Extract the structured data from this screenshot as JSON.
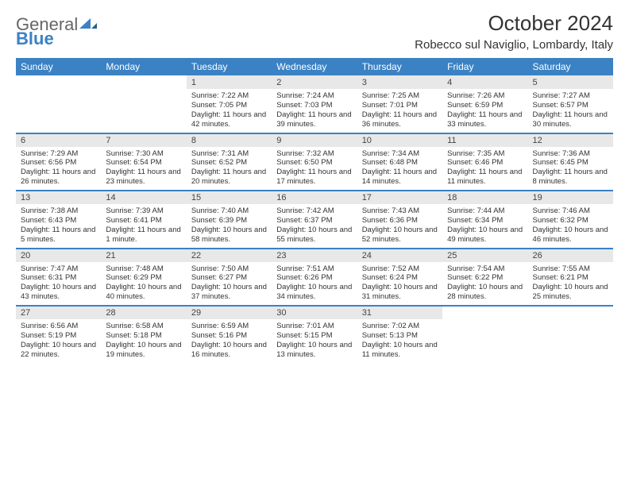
{
  "logo": {
    "part1": "General",
    "part2": "Blue"
  },
  "title": "October 2024",
  "location": "Robecco sul Naviglio, Lombardy, Italy",
  "colors": {
    "header_bg": "#3b82c4",
    "header_text": "#ffffff",
    "daynum_bg": "#e8e8e8",
    "border": "#3b82c4",
    "text": "#333333"
  },
  "dayNames": [
    "Sunday",
    "Monday",
    "Tuesday",
    "Wednesday",
    "Thursday",
    "Friday",
    "Saturday"
  ],
  "weeks": [
    [
      null,
      null,
      {
        "n": "1",
        "sr": "Sunrise: 7:22 AM",
        "ss": "Sunset: 7:05 PM",
        "dl": "Daylight: 11 hours and 42 minutes."
      },
      {
        "n": "2",
        "sr": "Sunrise: 7:24 AM",
        "ss": "Sunset: 7:03 PM",
        "dl": "Daylight: 11 hours and 39 minutes."
      },
      {
        "n": "3",
        "sr": "Sunrise: 7:25 AM",
        "ss": "Sunset: 7:01 PM",
        "dl": "Daylight: 11 hours and 36 minutes."
      },
      {
        "n": "4",
        "sr": "Sunrise: 7:26 AM",
        "ss": "Sunset: 6:59 PM",
        "dl": "Daylight: 11 hours and 33 minutes."
      },
      {
        "n": "5",
        "sr": "Sunrise: 7:27 AM",
        "ss": "Sunset: 6:57 PM",
        "dl": "Daylight: 11 hours and 30 minutes."
      }
    ],
    [
      {
        "n": "6",
        "sr": "Sunrise: 7:29 AM",
        "ss": "Sunset: 6:56 PM",
        "dl": "Daylight: 11 hours and 26 minutes."
      },
      {
        "n": "7",
        "sr": "Sunrise: 7:30 AM",
        "ss": "Sunset: 6:54 PM",
        "dl": "Daylight: 11 hours and 23 minutes."
      },
      {
        "n": "8",
        "sr": "Sunrise: 7:31 AM",
        "ss": "Sunset: 6:52 PM",
        "dl": "Daylight: 11 hours and 20 minutes."
      },
      {
        "n": "9",
        "sr": "Sunrise: 7:32 AM",
        "ss": "Sunset: 6:50 PM",
        "dl": "Daylight: 11 hours and 17 minutes."
      },
      {
        "n": "10",
        "sr": "Sunrise: 7:34 AM",
        "ss": "Sunset: 6:48 PM",
        "dl": "Daylight: 11 hours and 14 minutes."
      },
      {
        "n": "11",
        "sr": "Sunrise: 7:35 AM",
        "ss": "Sunset: 6:46 PM",
        "dl": "Daylight: 11 hours and 11 minutes."
      },
      {
        "n": "12",
        "sr": "Sunrise: 7:36 AM",
        "ss": "Sunset: 6:45 PM",
        "dl": "Daylight: 11 hours and 8 minutes."
      }
    ],
    [
      {
        "n": "13",
        "sr": "Sunrise: 7:38 AM",
        "ss": "Sunset: 6:43 PM",
        "dl": "Daylight: 11 hours and 5 minutes."
      },
      {
        "n": "14",
        "sr": "Sunrise: 7:39 AM",
        "ss": "Sunset: 6:41 PM",
        "dl": "Daylight: 11 hours and 1 minute."
      },
      {
        "n": "15",
        "sr": "Sunrise: 7:40 AM",
        "ss": "Sunset: 6:39 PM",
        "dl": "Daylight: 10 hours and 58 minutes."
      },
      {
        "n": "16",
        "sr": "Sunrise: 7:42 AM",
        "ss": "Sunset: 6:37 PM",
        "dl": "Daylight: 10 hours and 55 minutes."
      },
      {
        "n": "17",
        "sr": "Sunrise: 7:43 AM",
        "ss": "Sunset: 6:36 PM",
        "dl": "Daylight: 10 hours and 52 minutes."
      },
      {
        "n": "18",
        "sr": "Sunrise: 7:44 AM",
        "ss": "Sunset: 6:34 PM",
        "dl": "Daylight: 10 hours and 49 minutes."
      },
      {
        "n": "19",
        "sr": "Sunrise: 7:46 AM",
        "ss": "Sunset: 6:32 PM",
        "dl": "Daylight: 10 hours and 46 minutes."
      }
    ],
    [
      {
        "n": "20",
        "sr": "Sunrise: 7:47 AM",
        "ss": "Sunset: 6:31 PM",
        "dl": "Daylight: 10 hours and 43 minutes."
      },
      {
        "n": "21",
        "sr": "Sunrise: 7:48 AM",
        "ss": "Sunset: 6:29 PM",
        "dl": "Daylight: 10 hours and 40 minutes."
      },
      {
        "n": "22",
        "sr": "Sunrise: 7:50 AM",
        "ss": "Sunset: 6:27 PM",
        "dl": "Daylight: 10 hours and 37 minutes."
      },
      {
        "n": "23",
        "sr": "Sunrise: 7:51 AM",
        "ss": "Sunset: 6:26 PM",
        "dl": "Daylight: 10 hours and 34 minutes."
      },
      {
        "n": "24",
        "sr": "Sunrise: 7:52 AM",
        "ss": "Sunset: 6:24 PM",
        "dl": "Daylight: 10 hours and 31 minutes."
      },
      {
        "n": "25",
        "sr": "Sunrise: 7:54 AM",
        "ss": "Sunset: 6:22 PM",
        "dl": "Daylight: 10 hours and 28 minutes."
      },
      {
        "n": "26",
        "sr": "Sunrise: 7:55 AM",
        "ss": "Sunset: 6:21 PM",
        "dl": "Daylight: 10 hours and 25 minutes."
      }
    ],
    [
      {
        "n": "27",
        "sr": "Sunrise: 6:56 AM",
        "ss": "Sunset: 5:19 PM",
        "dl": "Daylight: 10 hours and 22 minutes."
      },
      {
        "n": "28",
        "sr": "Sunrise: 6:58 AM",
        "ss": "Sunset: 5:18 PM",
        "dl": "Daylight: 10 hours and 19 minutes."
      },
      {
        "n": "29",
        "sr": "Sunrise: 6:59 AM",
        "ss": "Sunset: 5:16 PM",
        "dl": "Daylight: 10 hours and 16 minutes."
      },
      {
        "n": "30",
        "sr": "Sunrise: 7:01 AM",
        "ss": "Sunset: 5:15 PM",
        "dl": "Daylight: 10 hours and 13 minutes."
      },
      {
        "n": "31",
        "sr": "Sunrise: 7:02 AM",
        "ss": "Sunset: 5:13 PM",
        "dl": "Daylight: 10 hours and 11 minutes."
      },
      null,
      null
    ]
  ]
}
